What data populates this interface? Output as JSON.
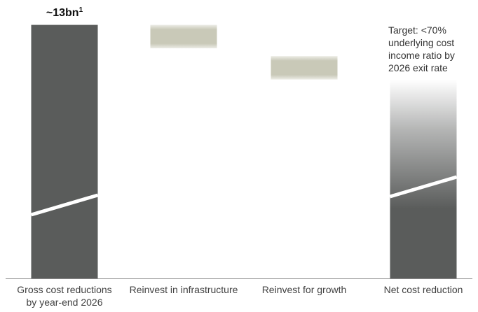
{
  "chart_data": {
    "type": "bar",
    "subtype": "waterfall",
    "title": "",
    "xlabel": "",
    "ylabel": "",
    "categories": [
      [
        "Gross cost reductions",
        "by year-end 2026"
      ],
      [
        "Reinvest in infrastructure"
      ],
      [
        "Reinvest for growth"
      ],
      [
        "Net cost reduction"
      ]
    ],
    "value_label": "~13bn",
    "value_label_superscript": "1",
    "annotation": [
      "Target: <70%",
      "underlying cost",
      "income ratio by",
      "2026 exit rate"
    ],
    "bars": [
      {
        "kind": "total",
        "start": 0,
        "end": 13.0
      },
      {
        "kind": "decrease",
        "start": 13.0,
        "end": 11.8
      },
      {
        "kind": "decrease",
        "start": 11.4,
        "end": 10.2
      },
      {
        "kind": "total",
        "start": 0,
        "end": 10.2,
        "fade_top": true
      }
    ],
    "axis_break": true,
    "ylim": [
      0,
      13.2
    ],
    "colors": {
      "total": "#5a5c5b",
      "reinvest": "#c9c9b8",
      "axis": "#8c8c8c",
      "background": "#ffffff"
    },
    "grid": false,
    "legend": "none"
  }
}
